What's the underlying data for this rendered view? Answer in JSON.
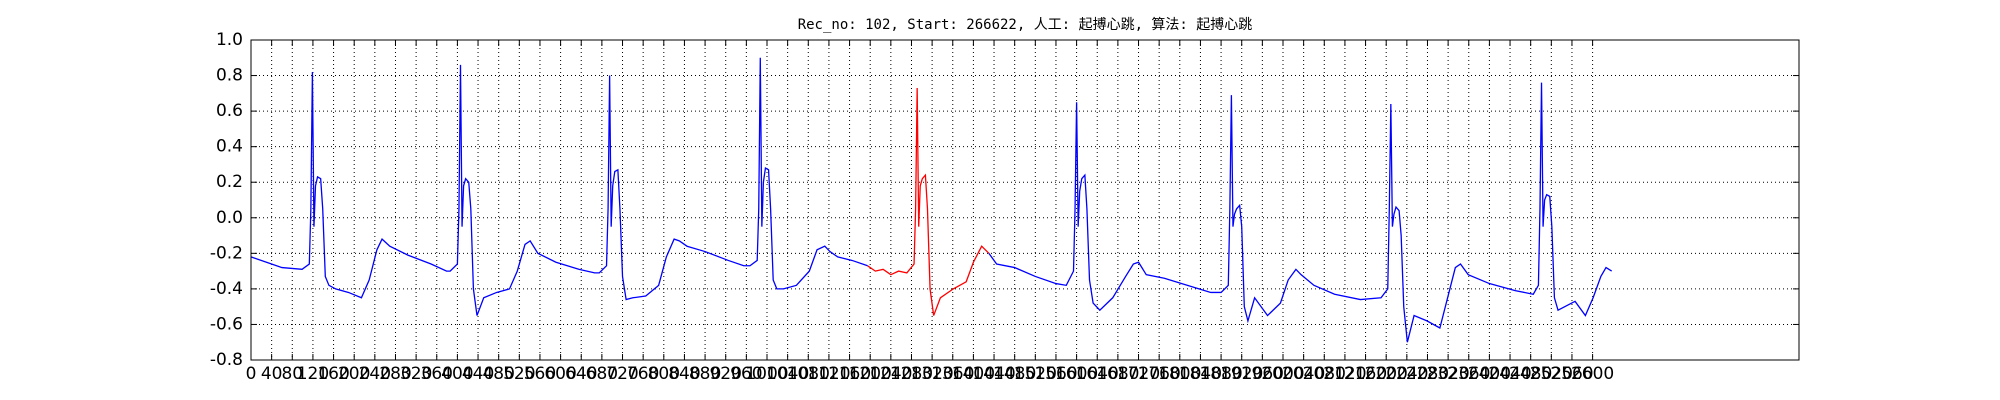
{
  "chart_data": {
    "type": "line",
    "title": "Rec_no: 102, Start: 266622, 人工: 起搏心跳, 算法: 起搏心跳",
    "xlim": [
      0,
      3000
    ],
    "ylim": [
      -0.8,
      1.0
    ],
    "xticks": [
      0,
      40,
      80,
      120,
      160,
      200,
      240,
      280,
      320,
      360,
      400,
      440,
      480,
      520,
      560,
      600,
      640,
      680,
      720,
      760,
      800,
      840,
      880,
      920,
      960,
      1000,
      1040,
      1080,
      1120,
      1160,
      1200,
      1240,
      1280,
      1320,
      1360,
      1400,
      1440,
      1480,
      1520,
      1560,
      1600,
      1640,
      1680,
      1720,
      1760,
      1800,
      1840,
      1880,
      1920,
      1960,
      2000,
      2040,
      2080,
      2120,
      2160,
      2200,
      2240,
      2280,
      2320,
      2360,
      2400,
      2440,
      2480,
      2520,
      2560,
      2600
    ],
    "yticks": [
      -0.8,
      -0.6,
      -0.4,
      -0.2,
      {
        "value": 0.0,
        "label": "0.0"
      },
      0.2,
      0.4,
      0.6,
      0.8,
      {
        "value": 1.0,
        "label": "1.0"
      }
    ],
    "grid": true,
    "series": [
      {
        "color": "#0000ff",
        "x": [
          0,
          30,
          60,
          99,
          113,
          116,
          119,
          122,
          125,
          129,
          135,
          139,
          144,
          151,
          164,
          189,
          214,
          229,
          244,
          254,
          269,
          304,
          349,
          379,
          386,
          400,
          403,
          406,
          409,
          412,
          416,
          422,
          426,
          431,
          438,
          451,
          476,
          501,
          516,
          531,
          541,
          556,
          591,
          636,
          666,
          675,
          689,
          692,
          695,
          698,
          701,
          705,
          711,
          715,
          720,
          727,
          740,
          765,
          790,
          805,
          820,
          830,
          845,
          880,
          925,
          955,
          967,
          981,
          984,
          987,
          990,
          993,
          997,
          1003,
          1007,
          1012,
          1019,
          1032,
          1057,
          1082,
          1097,
          1112,
          1122,
          1137,
          1165,
          1195,
          1300,
          1430,
          1445,
          1480,
          1520,
          1560,
          1580,
          1594,
          1597,
          1600,
          1603,
          1606,
          1610,
          1616,
          1620,
          1625,
          1632,
          1645,
          1670,
          1695,
          1710,
          1720,
          1735,
          1770,
          1815,
          1860,
          1880,
          1894,
          1897,
          1900,
          1903,
          1906,
          1910,
          1916,
          1920,
          1925,
          1932,
          1945,
          1970,
          1995,
          2010,
          2025,
          2035,
          2060,
          2100,
          2150,
          2190,
          2203,
          2206,
          2209,
          2212,
          2215,
          2219,
          2225,
          2229,
          2234,
          2241,
          2254,
          2279,
          2304,
          2319,
          2334,
          2344,
          2359,
          2400,
          2450,
          2485,
          2495,
          2498,
          2501,
          2504,
          2507,
          2511,
          2517,
          2521,
          2526,
          2533,
          2546,
          2566,
          2586,
          2601,
          2616,
          2626,
          2637
        ],
        "values": [
          -0.22,
          -0.25,
          -0.28,
          -0.29,
          -0.26,
          0.05,
          0.82,
          -0.05,
          0.18,
          0.23,
          0.22,
          0.05,
          -0.33,
          -0.38,
          -0.4,
          -0.42,
          -0.45,
          -0.35,
          -0.18,
          -0.12,
          -0.16,
          -0.21,
          -0.26,
          -0.3,
          -0.3,
          -0.26,
          0.05,
          0.86,
          -0.05,
          0.18,
          0.22,
          0.2,
          0.05,
          -0.4,
          -0.55,
          -0.45,
          -0.42,
          -0.4,
          -0.3,
          -0.15,
          -0.13,
          -0.2,
          -0.25,
          -0.29,
          -0.31,
          -0.31,
          -0.27,
          0.05,
          0.8,
          -0.05,
          0.18,
          0.26,
          0.27,
          0.05,
          -0.33,
          -0.46,
          -0.45,
          -0.44,
          -0.38,
          -0.22,
          -0.12,
          -0.13,
          -0.16,
          -0.19,
          -0.24,
          -0.27,
          -0.27,
          -0.24,
          0.05,
          0.9,
          -0.05,
          0.2,
          0.28,
          0.27,
          0.05,
          -0.35,
          -0.4,
          -0.4,
          -0.38,
          -0.3,
          -0.18,
          -0.16,
          -0.19,
          -0.22,
          -0.24,
          -0.27,
          null,
          -0.2,
          -0.26,
          -0.28,
          -0.33,
          -0.37,
          -0.38,
          -0.3,
          0.05,
          0.65,
          -0.05,
          0.15,
          0.22,
          0.24,
          0.05,
          -0.35,
          -0.48,
          -0.52,
          -0.45,
          -0.33,
          -0.26,
          -0.25,
          -0.32,
          -0.34,
          -0.38,
          -0.42,
          -0.42,
          -0.38,
          0.05,
          0.69,
          -0.05,
          0.02,
          0.05,
          0.07,
          -0.05,
          -0.5,
          -0.58,
          -0.45,
          -0.55,
          -0.48,
          -0.35,
          -0.29,
          -0.32,
          -0.38,
          -0.43,
          -0.46,
          -0.45,
          -0.4,
          0.05,
          0.64,
          -0.05,
          0.02,
          0.06,
          0.04,
          -0.1,
          -0.5,
          -0.7,
          -0.55,
          -0.58,
          -0.62,
          -0.45,
          -0.28,
          -0.26,
          -0.32,
          -0.37,
          -0.41,
          -0.43,
          -0.38,
          0.05,
          0.76,
          -0.05,
          0.1,
          0.13,
          0.12,
          -0.05,
          -0.45,
          -0.52,
          -0.5,
          -0.47,
          -0.55,
          -0.45,
          -0.33,
          -0.28,
          -0.3
        ]
      },
      {
        "color": "#ff0000",
        "x": [
          1195,
          1210,
          1225,
          1240,
          1255,
          1271,
          1285,
          1288,
          1291,
          1294,
          1297,
          1301,
          1307,
          1311,
          1316,
          1323,
          1336,
          1361,
          1386,
          1400,
          1416,
          1430
        ],
        "values": [
          -0.27,
          -0.3,
          -0.29,
          -0.32,
          -0.3,
          -0.31,
          -0.26,
          0.05,
          0.73,
          -0.05,
          0.18,
          0.22,
          0.24,
          0.05,
          -0.4,
          -0.55,
          -0.45,
          -0.4,
          -0.36,
          -0.25,
          -0.16,
          -0.2
        ]
      }
    ]
  }
}
